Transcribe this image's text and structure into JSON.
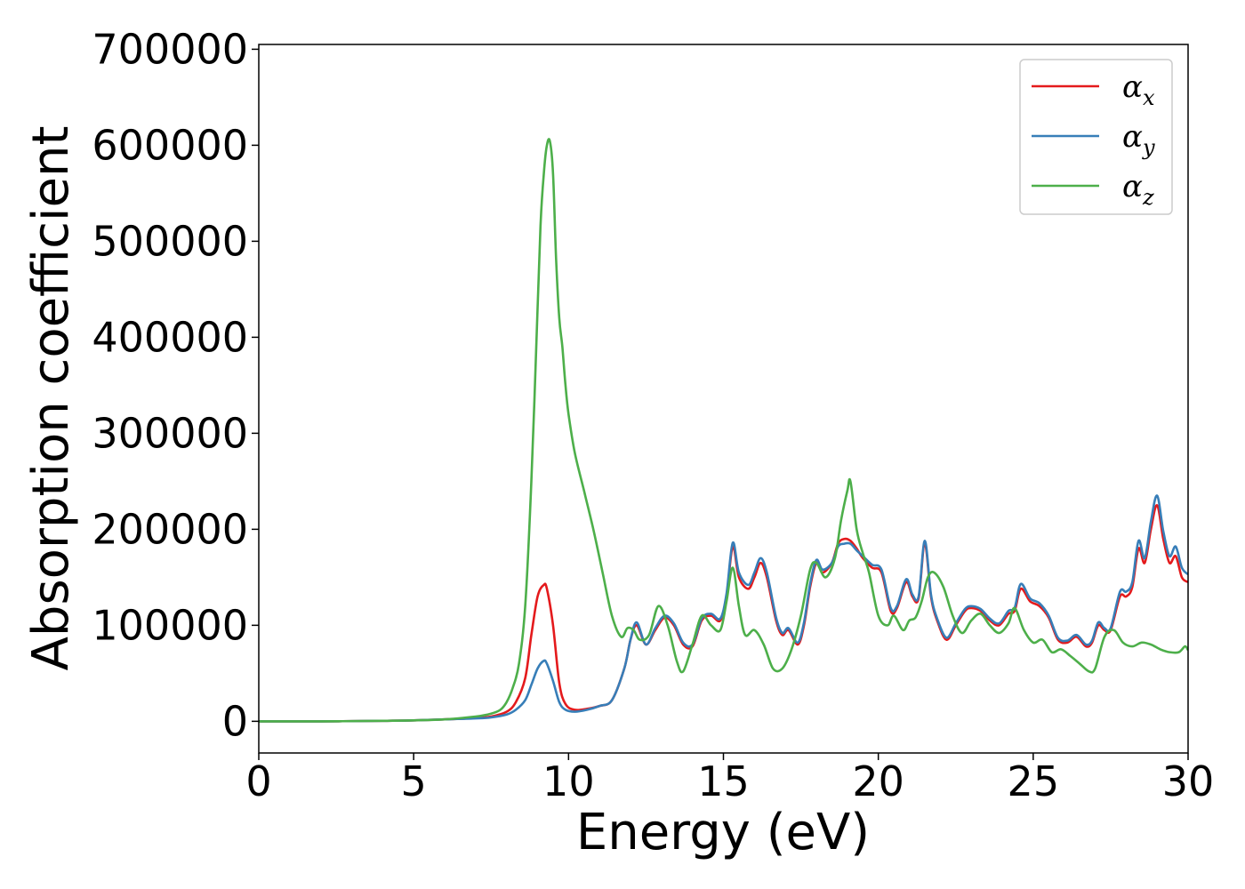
{
  "chart_data": {
    "type": "line",
    "title": "",
    "xlabel": "Energy (eV)",
    "ylabel": "Absorption coefficient",
    "xlim": [
      0,
      30
    ],
    "ylim": [
      -33000,
      705000
    ],
    "xticks": [
      0,
      5,
      10,
      15,
      20,
      25,
      30
    ],
    "xtick_labels": [
      "0",
      "5",
      "10",
      "15",
      "20",
      "25",
      "30"
    ],
    "yticks": [
      0,
      100000,
      200000,
      300000,
      400000,
      500000,
      600000,
      700000
    ],
    "ytick_labels": [
      "0",
      "100000",
      "200000",
      "300000",
      "400000",
      "500000",
      "600000",
      "700000"
    ],
    "grid": false,
    "legend": {
      "position": "top-right"
    },
    "series": [
      {
        "name": "α_x",
        "symbol": "α",
        "subscript": "x",
        "color": "#e41a1c",
        "x": [
          0,
          2,
          4,
          5,
          6,
          7,
          7.5,
          8,
          8.3,
          8.6,
          8.8,
          9.0,
          9.2,
          9.3,
          9.5,
          9.7,
          9.9,
          10.2,
          10.6,
          11.0,
          11.4,
          11.8,
          12.0,
          12.2,
          12.5,
          12.8,
          13.1,
          13.4,
          13.7,
          14.0,
          14.3,
          14.6,
          14.9,
          15.1,
          15.3,
          15.5,
          15.8,
          16.0,
          16.2,
          16.4,
          16.7,
          16.9,
          17.1,
          17.4,
          17.6,
          17.8,
          18.0,
          18.2,
          18.5,
          18.7,
          18.9,
          19.1,
          19.3,
          19.5,
          19.8,
          20.1,
          20.4,
          20.6,
          20.9,
          21.1,
          21.3,
          21.5,
          21.7,
          21.9,
          22.2,
          22.5,
          22.8,
          23.0,
          23.3,
          23.6,
          23.9,
          24.2,
          24.4,
          24.6,
          24.9,
          25.2,
          25.5,
          25.8,
          26.1,
          26.4,
          26.7,
          26.9,
          27.1,
          27.3,
          27.5,
          27.8,
          28.0,
          28.2,
          28.4,
          28.6,
          28.8,
          29.0,
          29.2,
          29.4,
          29.6,
          29.8,
          30.0
        ],
        "y": [
          0,
          0,
          500,
          1000,
          2000,
          3500,
          5000,
          10000,
          20000,
          45000,
          90000,
          130000,
          142000,
          138000,
          100000,
          40000,
          18000,
          12000,
          13000,
          16000,
          22000,
          55000,
          85000,
          100000,
          80000,
          95000,
          108000,
          100000,
          80000,
          78000,
          105000,
          110000,
          105000,
          130000,
          182000,
          150000,
          138000,
          150000,
          165000,
          150000,
          105000,
          90000,
          95000,
          80000,
          100000,
          140000,
          165000,
          155000,
          165000,
          185000,
          190000,
          188000,
          180000,
          170000,
          160000,
          155000,
          115000,
          118000,
          145000,
          130000,
          128000,
          185000,
          130000,
          105000,
          85000,
          100000,
          115000,
          118000,
          115000,
          105000,
          100000,
          112000,
          115000,
          138000,
          125000,
          120000,
          108000,
          85000,
          82000,
          88000,
          78000,
          82000,
          100000,
          95000,
          95000,
          130000,
          130000,
          140000,
          180000,
          165000,
          200000,
          225000,
          190000,
          165000,
          172000,
          150000,
          145000
        ]
      },
      {
        "name": "α_y",
        "symbol": "α",
        "subscript": "y",
        "color": "#377eb8",
        "x": [
          0,
          2,
          4,
          5,
          6,
          7,
          7.5,
          8,
          8.3,
          8.6,
          8.8,
          9.0,
          9.2,
          9.3,
          9.5,
          9.7,
          9.9,
          10.2,
          10.6,
          11.0,
          11.4,
          11.8,
          12.0,
          12.2,
          12.5,
          12.8,
          13.1,
          13.4,
          13.7,
          14.0,
          14.3,
          14.6,
          14.9,
          15.1,
          15.3,
          15.5,
          15.8,
          16.0,
          16.2,
          16.4,
          16.7,
          16.9,
          17.1,
          17.4,
          17.6,
          17.8,
          18.0,
          18.2,
          18.5,
          18.7,
          18.9,
          19.1,
          19.3,
          19.5,
          19.8,
          20.1,
          20.4,
          20.6,
          20.9,
          21.1,
          21.3,
          21.5,
          21.7,
          21.9,
          22.2,
          22.5,
          22.8,
          23.0,
          23.3,
          23.6,
          23.9,
          24.2,
          24.4,
          24.6,
          24.9,
          25.2,
          25.5,
          25.8,
          26.1,
          26.4,
          26.7,
          26.9,
          27.1,
          27.3,
          27.5,
          27.8,
          28.0,
          28.2,
          28.4,
          28.6,
          28.8,
          29.0,
          29.2,
          29.4,
          29.6,
          29.8,
          30.0
        ],
        "y": [
          0,
          0,
          500,
          1000,
          2000,
          3000,
          4000,
          7000,
          12000,
          22000,
          38000,
          55000,
          63000,
          60000,
          42000,
          20000,
          12000,
          10000,
          12000,
          16000,
          22000,
          55000,
          85000,
          103000,
          80000,
          97000,
          110000,
          102000,
          82000,
          80000,
          107000,
          112000,
          107000,
          133000,
          186000,
          155000,
          142000,
          155000,
          170000,
          155000,
          108000,
          92000,
          97000,
          82000,
          103000,
          143000,
          168000,
          158000,
          165000,
          182000,
          185000,
          185000,
          178000,
          172000,
          163000,
          158000,
          118000,
          120000,
          148000,
          132000,
          130000,
          188000,
          132000,
          107000,
          87000,
          102000,
          117000,
          120000,
          117000,
          107000,
          102000,
          115000,
          118000,
          143000,
          128000,
          123000,
          110000,
          87000,
          84000,
          90000,
          80000,
          84000,
          103000,
          97000,
          97000,
          135000,
          135000,
          145000,
          188000,
          170000,
          208000,
          235000,
          198000,
          172000,
          182000,
          160000,
          153000
        ]
      },
      {
        "name": "α_z",
        "symbol": "α",
        "subscript": "z",
        "color": "#4daf4a",
        "x": [
          0,
          2,
          4,
          5,
          6,
          7,
          7.5,
          7.8,
          8.0,
          8.2,
          8.4,
          8.6,
          8.8,
          9.0,
          9.1,
          9.2,
          9.3,
          9.4,
          9.5,
          9.6,
          9.7,
          9.8,
          9.9,
          10.0,
          10.2,
          10.5,
          10.8,
          11.1,
          11.4,
          11.7,
          11.9,
          12.1,
          12.3,
          12.6,
          12.9,
          13.2,
          13.5,
          13.7,
          14.0,
          14.3,
          14.6,
          14.9,
          15.1,
          15.3,
          15.5,
          15.7,
          16.0,
          16.3,
          16.6,
          16.9,
          17.2,
          17.5,
          17.8,
          18.0,
          18.3,
          18.6,
          18.8,
          19.0,
          19.1,
          19.3,
          19.5,
          19.7,
          20.0,
          20.3,
          20.5,
          20.8,
          21.0,
          21.2,
          21.4,
          21.6,
          21.8,
          22.1,
          22.4,
          22.7,
          23.0,
          23.3,
          23.6,
          23.9,
          24.2,
          24.4,
          24.7,
          25.0,
          25.3,
          25.6,
          25.9,
          26.2,
          26.5,
          26.8,
          27.0,
          27.3,
          27.6,
          27.9,
          28.2,
          28.5,
          28.8,
          29.1,
          29.4,
          29.7,
          29.9,
          30.0
        ],
        "y": [
          0,
          0,
          500,
          1000,
          2000,
          5000,
          8000,
          12000,
          20000,
          35000,
          60000,
          120000,
          250000,
          430000,
          520000,
          570000,
          600000,
          604000,
          570000,
          480000,
          420000,
          390000,
          350000,
          320000,
          280000,
          240000,
          200000,
          155000,
          110000,
          88000,
          97000,
          95000,
          85000,
          90000,
          120000,
          100000,
          62000,
          52000,
          80000,
          110000,
          100000,
          95000,
          125000,
          160000,
          120000,
          90000,
          95000,
          80000,
          55000,
          55000,
          75000,
          110000,
          158000,
          165000,
          150000,
          170000,
          210000,
          240000,
          250000,
          200000,
          175000,
          155000,
          110000,
          100000,
          110000,
          95000,
          105000,
          108000,
          125000,
          150000,
          155000,
          140000,
          110000,
          92000,
          105000,
          112000,
          100000,
          92000,
          102000,
          118000,
          95000,
          82000,
          85000,
          72000,
          75000,
          68000,
          60000,
          52000,
          55000,
          88000,
          95000,
          82000,
          78000,
          82000,
          80000,
          75000,
          72000,
          72000,
          78000,
          74000
        ]
      }
    ]
  }
}
